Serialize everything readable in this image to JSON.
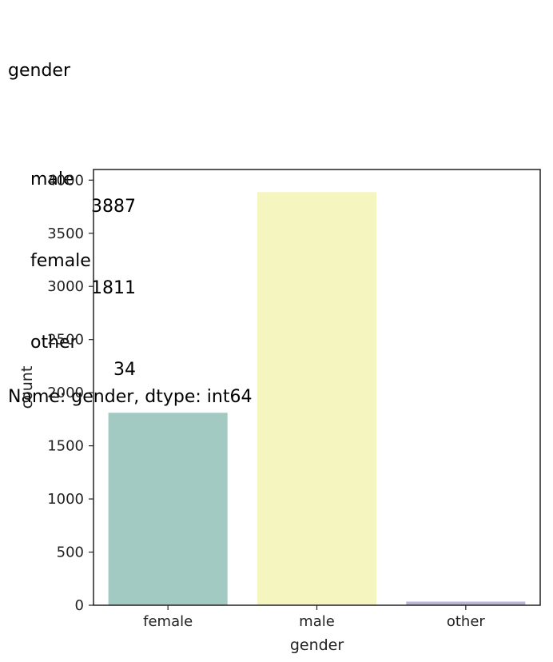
{
  "output": {
    "header": "gender",
    "rows": [
      {
        "key": "male",
        "value": "3887"
      },
      {
        "key": "female",
        "value": "1811"
      },
      {
        "key": "other",
        "value": "34"
      }
    ],
    "footer": "Name: gender, dtype: int64"
  },
  "chart_data": {
    "type": "bar",
    "categories": [
      "female",
      "male",
      "other"
    ],
    "values": [
      1811,
      3887,
      34
    ],
    "colors": [
      "#a2c9c2",
      "#f5f5c0",
      "#b9b5d6"
    ],
    "title": "",
    "xlabel": "gender",
    "ylabel": "count",
    "ylim": [
      0,
      4100
    ],
    "yticks": [
      0,
      500,
      1000,
      1500,
      2000,
      2500,
      3000,
      3500,
      4000
    ],
    "grid": false
  }
}
